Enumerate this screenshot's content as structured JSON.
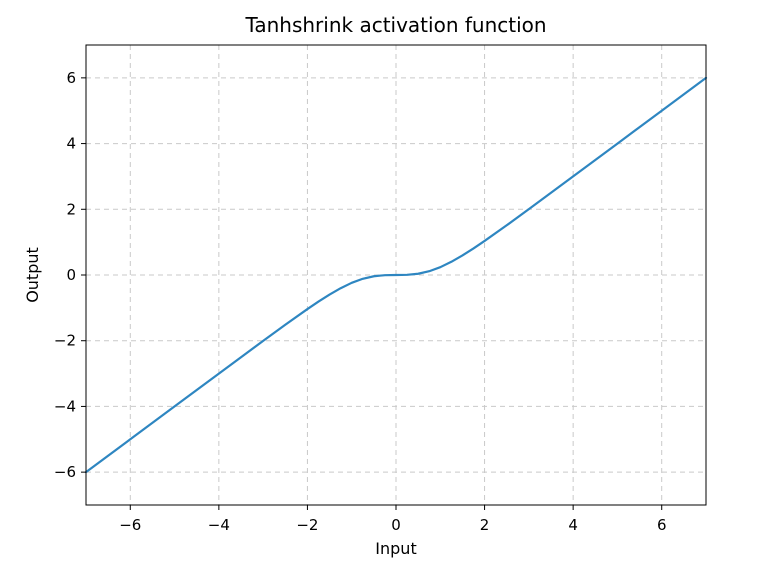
{
  "chart_data": {
    "type": "line",
    "title": "Tanhshrink activation function",
    "xlabel": "Input",
    "ylabel": "Output",
    "xlim": [
      -7,
      7
    ],
    "ylim": [
      -7,
      7
    ],
    "xticks": [
      -6,
      -4,
      -2,
      0,
      2,
      4,
      6
    ],
    "yticks": [
      -6,
      -4,
      -2,
      0,
      2,
      4,
      6
    ],
    "xtick_labels": [
      "−6",
      "−4",
      "−2",
      "0",
      "2",
      "4",
      "6"
    ],
    "ytick_labels": [
      "−6",
      "−4",
      "−2",
      "0",
      "2",
      "4",
      "6"
    ],
    "grid": true,
    "legend": "none",
    "series": [
      {
        "color": "#2e86c1",
        "x": [
          -7,
          -6,
          -5,
          -4,
          -3.5,
          -3,
          -2.5,
          -2,
          -1.75,
          -1.5,
          -1.25,
          -1,
          -0.75,
          -0.5,
          -0.25,
          0,
          0.25,
          0.5,
          0.75,
          1,
          1.25,
          1.5,
          1.75,
          2,
          2.5,
          3,
          3.5,
          4,
          5,
          6,
          7
        ],
        "y": [
          -6.0,
          -5.0,
          -4.0,
          -3.001,
          -2.502,
          -2.005,
          -1.513,
          -1.036,
          -0.809,
          -0.595,
          -0.402,
          -0.238,
          -0.115,
          -0.038,
          -0.005,
          0.0,
          0.005,
          0.038,
          0.115,
          0.238,
          0.402,
          0.595,
          0.809,
          1.036,
          1.513,
          2.005,
          2.502,
          3.001,
          4.0,
          5.0,
          6.0
        ]
      }
    ]
  }
}
